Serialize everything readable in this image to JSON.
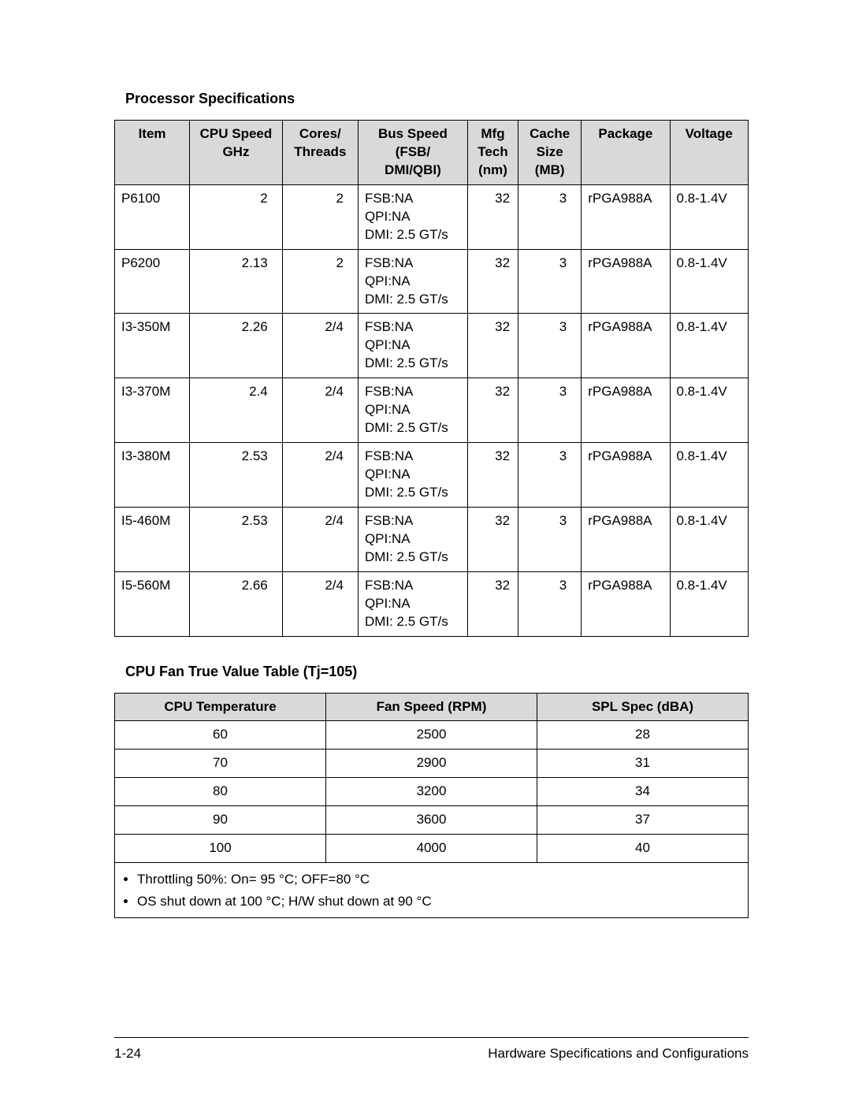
{
  "page": {
    "number": "1-24",
    "section": "Hardware Specifications and Configurations"
  },
  "processor_table": {
    "title": "Processor Specifications",
    "headers": [
      {
        "line1": "Item"
      },
      {
        "line1": "CPU Speed",
        "line2": "GHz"
      },
      {
        "line1": "Cores/",
        "line2": "Threads"
      },
      {
        "line1": "Bus Speed",
        "line2": "(FSB/",
        "line3": "DMI/QBI)"
      },
      {
        "line1": "Mfg",
        "line2": "Tech",
        "line3": "(nm)"
      },
      {
        "line1": "Cache",
        "line2": "Size",
        "line3": "(MB)"
      },
      {
        "line1": "Package"
      },
      {
        "line1": "Voltage"
      }
    ],
    "rows": [
      {
        "item": "P6100",
        "speed": "2",
        "ct": "2",
        "bus": "FSB:NA\nQPI:NA\nDMI: 2.5 GT/s",
        "mfg": "32",
        "cache": "3",
        "pkg": "rPGA988A",
        "volt": "0.8-1.4V"
      },
      {
        "item": "P6200",
        "speed": "2.13",
        "ct": "2",
        "bus": "FSB:NA\nQPI:NA\nDMI: 2.5 GT/s",
        "mfg": "32",
        "cache": "3",
        "pkg": "rPGA988A",
        "volt": "0.8-1.4V"
      },
      {
        "item": "I3-350M",
        "speed": "2.26",
        "ct": "2/4",
        "bus": "FSB:NA\nQPI:NA\nDMI: 2.5 GT/s",
        "mfg": "32",
        "cache": "3",
        "pkg": "rPGA988A",
        "volt": "0.8-1.4V"
      },
      {
        "item": "I3-370M",
        "speed": "2.4",
        "ct": "2/4",
        "bus": "FSB:NA\nQPI:NA\nDMI: 2.5 GT/s",
        "mfg": "32",
        "cache": "3",
        "pkg": "rPGA988A",
        "volt": "0.8-1.4V"
      },
      {
        "item": "I3-380M",
        "speed": "2.53",
        "ct": "2/4",
        "bus": "FSB:NA\nQPI:NA\nDMI: 2.5 GT/s",
        "mfg": "32",
        "cache": "3",
        "pkg": "rPGA988A",
        "volt": "0.8-1.4V"
      },
      {
        "item": "I5-460M",
        "speed": "2.53",
        "ct": "2/4",
        "bus": "FSB:NA\nQPI:NA\nDMI: 2.5 GT/s",
        "mfg": "32",
        "cache": "3",
        "pkg": "rPGA988A",
        "volt": "0.8-1.4V"
      },
      {
        "item": "I5-560M",
        "speed": "2.66",
        "ct": "2/4",
        "bus": "FSB:NA\nQPI:NA\nDMI: 2.5 GT/s",
        "mfg": "32",
        "cache": "3",
        "pkg": "rPGA988A",
        "volt": "0.8-1.4V"
      }
    ]
  },
  "fan_table": {
    "title": "CPU Fan True Value Table (Tj=105)",
    "headers": [
      "CPU Temperature",
      "Fan Speed (RPM)",
      "SPL Spec (dBA)"
    ],
    "rows": [
      {
        "temp": "60",
        "rpm": "2500",
        "spl": "28"
      },
      {
        "temp": "70",
        "rpm": "2900",
        "spl": "31"
      },
      {
        "temp": "80",
        "rpm": "3200",
        "spl": "34"
      },
      {
        "temp": "90",
        "rpm": "3600",
        "spl": "37"
      },
      {
        "temp": "100",
        "rpm": "4000",
        "spl": "40"
      }
    ],
    "notes": [
      "Throttling 50%: On= 95 °C; OFF=80 °C",
      "OS shut down at 100 °C; H/W shut down at 90 °C"
    ]
  }
}
